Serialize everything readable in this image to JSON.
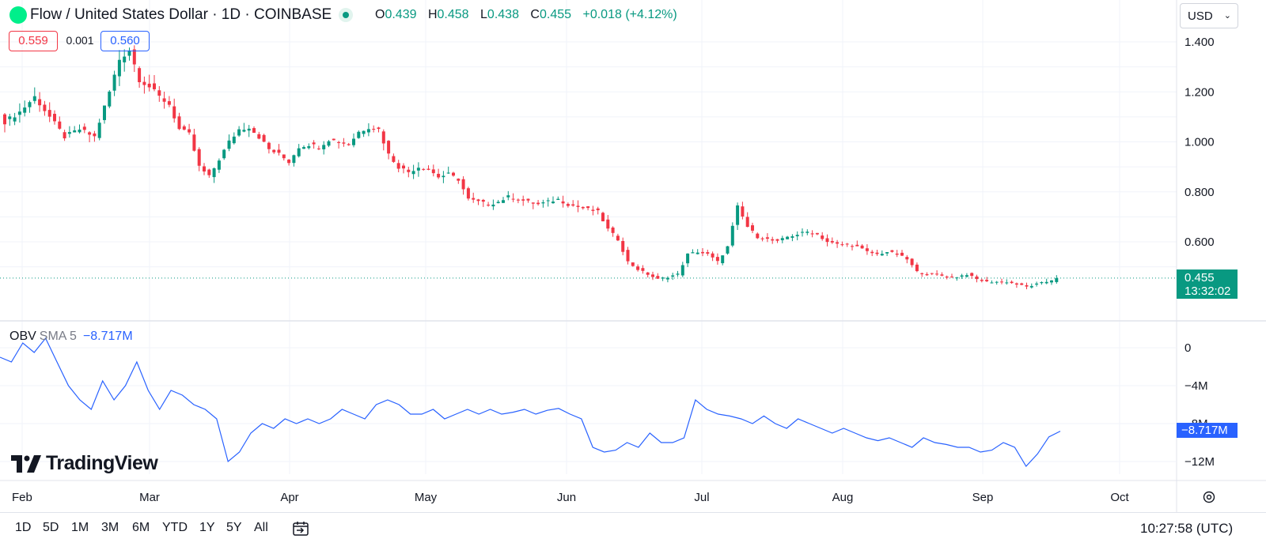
{
  "header": {
    "title": "Flow / United States Dollar · 1D · COINBASE",
    "ohlc": [
      {
        "key": "O",
        "value": "0.439"
      },
      {
        "key": "H",
        "value": "0.458"
      },
      {
        "key": "L",
        "value": "0.438"
      },
      {
        "key": "C",
        "value": "0.455"
      }
    ],
    "change": "+0.018 (+4.12%)",
    "currency": "USD"
  },
  "price_pills": {
    "bid": "0.559",
    "spread": "0.001",
    "ask": "0.560"
  },
  "last_price": {
    "value": "0.455",
    "countdown": "13:32:02"
  },
  "obv": {
    "name": "OBV",
    "sma": "SMA 5",
    "value": "−8.717M",
    "badge": "−8.717M"
  },
  "branding": {
    "logo_text": "TradingView"
  },
  "bottom_bar": {
    "ranges": [
      "1D",
      "5D",
      "1M",
      "3M",
      "6M",
      "YTD",
      "1Y",
      "5Y",
      "All"
    ],
    "time": "10:27:58 (UTC)"
  },
  "colors": {
    "up": "#089981",
    "down": "#f23645",
    "obv_line": "#2962ff",
    "grid": "#f0f3fa"
  },
  "icons": [
    "flow-logo-icon",
    "live-dot-icon",
    "chevron-down-icon",
    "calendar-range-icon",
    "settings-gear-icon"
  ],
  "chart_data": [
    {
      "type": "candlestick",
      "title": "Flow / United States Dollar · 1D · COINBASE",
      "x_labels": [
        "Feb",
        "Mar",
        "Apr",
        "May",
        "Jun",
        "Jul",
        "Aug",
        "Sep",
        "Oct"
      ],
      "y_ticks": [
        "1.400",
        "1.200",
        "1.000",
        "0.800",
        "0.600"
      ],
      "ylim": [
        0.38,
        1.44
      ],
      "grid": true,
      "last_price": 0.455,
      "ohlc_last": {
        "open": 0.439,
        "high": 0.458,
        "low": 0.438,
        "close": 0.455
      },
      "close_path": [
        [
          0,
          1.08
        ],
        [
          3,
          1.12
        ],
        [
          6,
          1.18
        ],
        [
          9,
          1.1
        ],
        [
          12,
          1.02
        ],
        [
          15,
          1.05
        ],
        [
          18,
          1.02
        ],
        [
          21,
          1.2
        ],
        [
          23,
          1.33
        ],
        [
          25,
          1.37
        ],
        [
          27,
          1.25
        ],
        [
          29,
          1.22
        ],
        [
          31,
          1.18
        ],
        [
          33,
          1.15
        ],
        [
          35,
          1.05
        ],
        [
          37,
          1.03
        ],
        [
          39,
          0.9
        ],
        [
          41,
          0.86
        ],
        [
          43,
          0.93
        ],
        [
          45,
          1.0
        ],
        [
          47,
          1.05
        ],
        [
          49,
          1.06
        ],
        [
          51,
          1.02
        ],
        [
          53,
          0.97
        ],
        [
          55,
          0.95
        ],
        [
          57,
          0.92
        ],
        [
          59,
          0.98
        ],
        [
          61,
          0.99
        ],
        [
          63,
          0.98
        ],
        [
          65,
          1.01
        ],
        [
          67,
          1.0
        ],
        [
          69,
          0.99
        ],
        [
          71,
          1.04
        ],
        [
          73,
          1.06
        ],
        [
          75,
          1.05
        ],
        [
          77,
          0.95
        ],
        [
          79,
          0.9
        ],
        [
          81,
          0.88
        ],
        [
          83,
          0.9
        ],
        [
          85,
          0.89
        ],
        [
          87,
          0.86
        ],
        [
          89,
          0.87
        ],
        [
          91,
          0.85
        ],
        [
          93,
          0.77
        ],
        [
          95,
          0.76
        ],
        [
          97,
          0.75
        ],
        [
          99,
          0.76
        ],
        [
          101,
          0.78
        ],
        [
          103,
          0.77
        ],
        [
          105,
          0.76
        ],
        [
          107,
          0.75
        ],
        [
          109,
          0.76
        ],
        [
          111,
          0.77
        ],
        [
          113,
          0.75
        ],
        [
          115,
          0.74
        ],
        [
          117,
          0.73
        ],
        [
          119,
          0.72
        ],
        [
          121,
          0.65
        ],
        [
          123,
          0.61
        ],
        [
          125,
          0.52
        ],
        [
          127,
          0.49
        ],
        [
          129,
          0.47
        ],
        [
          131,
          0.45
        ],
        [
          133,
          0.46
        ],
        [
          135,
          0.47
        ],
        [
          137,
          0.55
        ],
        [
          139,
          0.56
        ],
        [
          141,
          0.55
        ],
        [
          143,
          0.52
        ],
        [
          145,
          0.58
        ],
        [
          147,
          0.74
        ],
        [
          149,
          0.66
        ],
        [
          151,
          0.62
        ],
        [
          153,
          0.61
        ],
        [
          155,
          0.6
        ],
        [
          157,
          0.62
        ],
        [
          159,
          0.63
        ],
        [
          161,
          0.64
        ],
        [
          163,
          0.63
        ],
        [
          165,
          0.6
        ],
        [
          167,
          0.59
        ],
        [
          169,
          0.59
        ],
        [
          171,
          0.58
        ],
        [
          173,
          0.56
        ],
        [
          175,
          0.55
        ],
        [
          177,
          0.56
        ],
        [
          179,
          0.55
        ],
        [
          181,
          0.53
        ],
        [
          183,
          0.48
        ],
        [
          185,
          0.47
        ],
        [
          187,
          0.47
        ],
        [
          189,
          0.46
        ],
        [
          191,
          0.46
        ],
        [
          193,
          0.47
        ],
        [
          195,
          0.45
        ],
        [
          197,
          0.44
        ],
        [
          199,
          0.44
        ],
        [
          201,
          0.44
        ],
        [
          203,
          0.43
        ],
        [
          205,
          0.42
        ],
        [
          207,
          0.43
        ],
        [
          209,
          0.44
        ],
        [
          211,
          0.455
        ]
      ]
    },
    {
      "type": "line",
      "series": [
        {
          "name": "OBV",
          "values": [
            -1,
            -1.5,
            0.5,
            -0.5,
            1,
            -1.5,
            -4,
            -5.5,
            -6.5,
            -3.5,
            -5.5,
            -4,
            -1.5,
            -4.5,
            -6.5,
            -4.5,
            -5,
            -6,
            -6.5,
            -7.5,
            -12,
            -11,
            -9,
            -8,
            -8.5,
            -7.5,
            -8,
            -7.5,
            -8,
            -7.5,
            -6.5,
            -7,
            -7.5,
            -6,
            -5.5,
            -6,
            -7,
            -7,
            -6.5,
            -7.5,
            -7,
            -6.5,
            -7,
            -6.5,
            -7,
            -6.8,
            -6.5,
            -7,
            -6.6,
            -6.4,
            -7,
            -7.5,
            -10.5,
            -11,
            -10.8,
            -10,
            -10.5,
            -9,
            -10,
            -10,
            -9.5,
            -5.5,
            -6.5,
            -7,
            -7.2,
            -7.5,
            -8,
            -7.2,
            -8,
            -8.5,
            -7.5,
            -8,
            -8.5,
            -9,
            -8.5,
            -9,
            -9.5,
            -9.8,
            -9.5,
            -10,
            -10.5,
            -9.5,
            -10,
            -10.2,
            -10.5,
            -10.5,
            -11,
            -10.8,
            -10,
            -10.5,
            -12.5,
            -11.2,
            -9.4,
            -8.8
          ]
        }
      ],
      "y_ticks": [
        "0",
        "−4M",
        "−8M",
        "−12M"
      ],
      "ylim": [
        -13.5,
        1.2
      ]
    }
  ]
}
